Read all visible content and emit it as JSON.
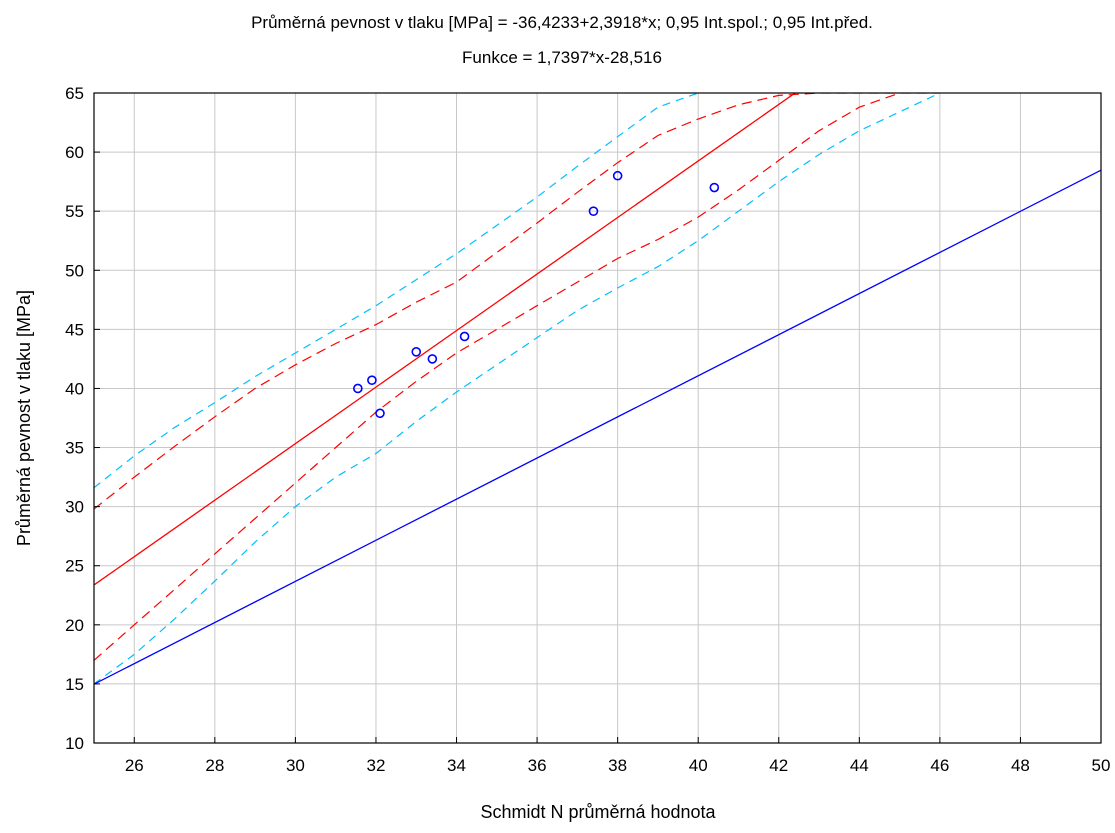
{
  "chart_data": {
    "type": "scatter",
    "title": "Průměrná pevnost v  tlaku [MPa] = -36,4233+2,3918*x; 0,95 Int.spol.; 0,95 Int.před.",
    "subtitle": "Funkce = 1,7397*x-28,516",
    "xlabel": "Schmidt N průměrná hodnota",
    "ylabel": "Průměrná pevnost v  tlaku [MPa]",
    "xlim": [
      25,
      50
    ],
    "ylim": [
      10,
      65
    ],
    "xticks": [
      "26",
      "28",
      "30",
      "32",
      "34",
      "36",
      "38",
      "40",
      "42",
      "44",
      "46",
      "48",
      "50"
    ],
    "yticks": [
      "10",
      "15",
      "20",
      "25",
      "30",
      "35",
      "40",
      "45",
      "50",
      "55",
      "60",
      "65"
    ],
    "grid": true,
    "points": {
      "x": [
        31.55,
        31.9,
        32.1,
        33.0,
        33.4,
        34.2,
        37.4,
        38.0,
        40.4
      ],
      "y": [
        40.0,
        40.7,
        37.9,
        43.1,
        42.5,
        44.4,
        55.0,
        58.0,
        57.0
      ],
      "color": "#0000ff"
    },
    "regression_line": {
      "intercept": -36.4233,
      "slope": 2.3918,
      "color": "#ff0000"
    },
    "confidence_band": {
      "color": "#ff0000",
      "upper": {
        "x": [
          25,
          26,
          27,
          28,
          29,
          30,
          31,
          32,
          33,
          34,
          35,
          36,
          37,
          38,
          39,
          40,
          41,
          42,
          43,
          44,
          45
        ],
        "y": [
          29.8,
          32.5,
          35.1,
          37.6,
          40.0,
          42.0,
          43.8,
          45.4,
          47.3,
          49.0,
          51.5,
          54.0,
          56.6,
          59.1,
          61.4,
          62.8,
          64.0,
          64.8,
          65.0,
          65.0,
          65.0
        ]
      },
      "lower": {
        "x": [
          25,
          26,
          27,
          28,
          29,
          30,
          31,
          32,
          33,
          34,
          35,
          36,
          37,
          38,
          39,
          40,
          41,
          42,
          43,
          44,
          45,
          46
        ],
        "y": [
          17.0,
          20.0,
          23.0,
          26.0,
          29.0,
          32.0,
          35.0,
          38.0,
          40.6,
          43.0,
          45.0,
          47.0,
          49.0,
          51.0,
          52.6,
          54.5,
          56.8,
          59.3,
          61.8,
          63.8,
          65.0,
          65.0
        ]
      }
    },
    "prediction_band": {
      "color": "#00bfff",
      "upper": {
        "x": [
          25,
          26,
          27,
          28,
          29,
          30,
          31,
          32,
          33,
          34,
          35,
          36,
          37,
          38,
          39,
          40
        ],
        "y": [
          31.6,
          34.3,
          36.7,
          38.8,
          41.0,
          43.0,
          45.0,
          47.0,
          49.2,
          51.4,
          53.8,
          56.2,
          58.8,
          61.3,
          63.8,
          65.0
        ]
      },
      "lower": {
        "x": [
          25,
          26,
          27,
          28,
          29,
          30,
          31,
          32,
          33,
          34,
          35,
          36,
          37,
          38,
          39,
          40,
          41,
          42,
          43,
          44,
          45,
          46
        ],
        "y": [
          15.0,
          17.5,
          20.5,
          23.7,
          27.0,
          30.0,
          32.5,
          34.5,
          37.2,
          39.7,
          42.0,
          44.3,
          46.6,
          48.5,
          50.3,
          52.5,
          55.0,
          57.5,
          59.8,
          61.8,
          63.4,
          65.0
        ]
      }
    },
    "function_line": {
      "intercept": -28.516,
      "slope": 1.7397,
      "color": "#0000ff"
    }
  }
}
